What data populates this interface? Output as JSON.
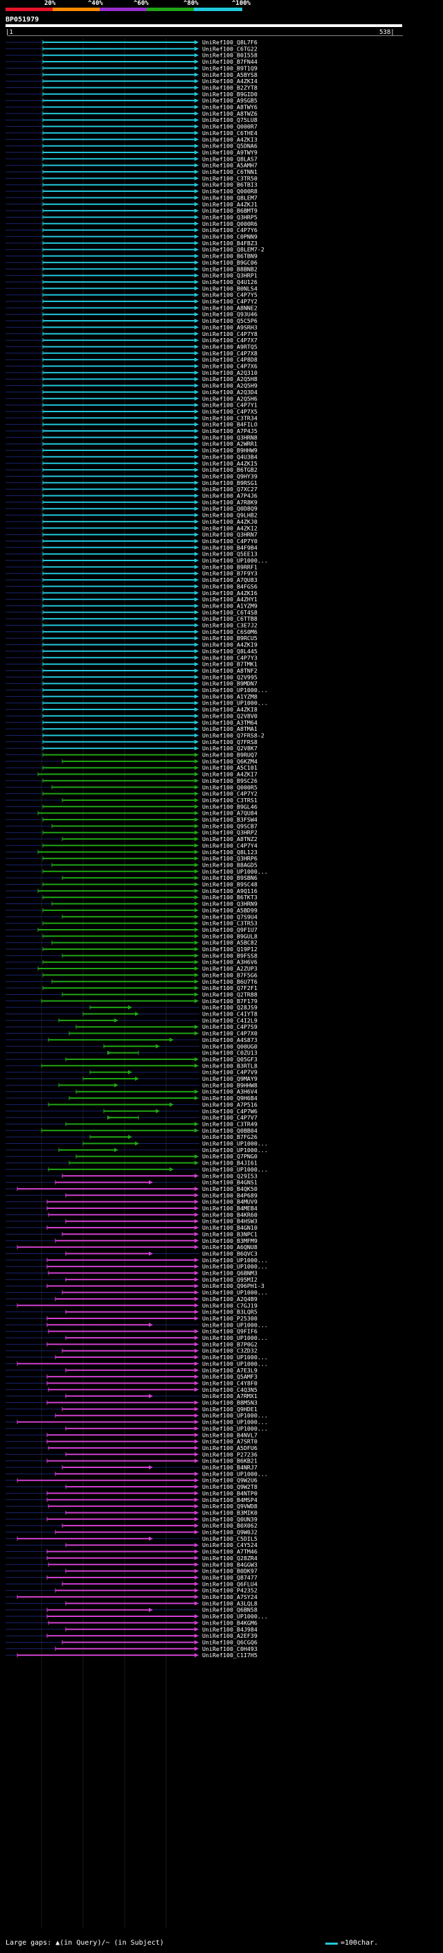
{
  "legend": {
    "labels": [
      "20%",
      "^40%",
      "^60%",
      "^80%",
      "^100%"
    ],
    "colors": [
      "#e8142b",
      "#ff8a00",
      "#9a2fd0",
      "#1fa616",
      "#22c8dc"
    ]
  },
  "query": {
    "title": "BP051979",
    "start_label": "|1",
    "end_label": "538|"
  },
  "identity_colors": {
    "cyan": "#22c8dc",
    "green": "#1fa616",
    "magenta": "#d040d0",
    "gap": "#3040c8"
  },
  "hits": [
    "UniRef100_Q8L7F6",
    "UniRef100_C6TG22",
    "UniRef100_B0I558",
    "UniRef100_B7FN44",
    "UniRef100_B9T1Q9",
    "UniRef100_A5BYS8",
    "UniRef100_A4ZKI4",
    "UniRef100_B2ZYT8",
    "UniRef100_B9GID0",
    "UniRef100_A9SGB5",
    "UniRef100_A8TWY6",
    "UniRef100_A8TWZ6",
    "UniRef100_Q75LU8",
    "UniRef100_Q000R7",
    "UniRef100_C6THE4",
    "UniRef100_A4ZKI3",
    "UniRef100_Q5DNA6",
    "UniRef100_A9TWY9",
    "UniRef100_Q8LAS7",
    "UniRef100_A5AMH7",
    "UniRef100_C6TNN1",
    "UniRef100_C3TR50",
    "UniRef100_B6TBI3",
    "UniRef100_Q000R8",
    "UniRef100_Q8LEM7",
    "UniRef100_A4ZKJ1",
    "UniRef100_B6BMT9",
    "UniRef100_Q3HRP5",
    "UniRef100_Q000R6",
    "UniRef100_C4P7Y6",
    "UniRef100_C0PNN9",
    "UniRef100_B4FBZ3",
    "UniRef100_Q8LEM7-2",
    "UniRef100_B6TBN9",
    "UniRef100_B9GC06",
    "UniRef100_B8BNB2",
    "UniRef100_Q3HRP1",
    "UniRef100_Q4U126",
    "UniRef100_B0NLS4",
    "UniRef100_C4P7Y5",
    "UniRef100_C4P7Y2",
    "UniRef100_A8NNE2",
    "UniRef100_Q93U46",
    "UniRef100_Q5C5P6",
    "UniRef100_A9SRH3",
    "UniRef100_C4P7Y8",
    "UniRef100_C4P7X7",
    "UniRef100_A9RTQ5",
    "UniRef100_C4P7X8",
    "UniRef100_C4P8D8",
    "UniRef100_C4P7X6",
    "UniRef100_A2Q310",
    "UniRef100_A2Q5H8",
    "UniRef100_A2Q5H9",
    "UniRef100_A2Q3D4",
    "UniRef100_A2Q5H6",
    "UniRef100_C4P7Y1",
    "UniRef100_C4P7X5",
    "UniRef100_C3TR34",
    "UniRef100_B4FILO",
    "UniRef100_A7P4J5",
    "UniRef100_Q3HRN8",
    "UniRef100_A2WRR1",
    "UniRef100_B9HHW9",
    "UniRef100_Q4U3B4",
    "UniRef100_A4ZKI5",
    "UniRef100_B6TGB2",
    "UniRef100_Q9HY39",
    "UniRef100_B9RSG1",
    "UniRef100_Q7XC27",
    "UniRef100_A7P4J6",
    "UniRef100_A7R8K9",
    "UniRef100_Q0D8Q9",
    "UniRef100_Q9LHB2",
    "UniRef100_A4ZKJ0",
    "UniRef100_A4ZKI2",
    "UniRef100_Q3HRN7",
    "UniRef100_C4P7Y0",
    "UniRef100_B4F9B4",
    "UniRef100_Q5EE13",
    "UniRef100_UP1000...",
    "UniRef100_B9RRF1",
    "UniRef100_B7F9Y3",
    "UniRef100_A7QU83",
    "UniRef100_B4FGS6",
    "UniRef100_A4ZKI6",
    "UniRef100_A4ZHY1",
    "UniRef100_A1YZM9",
    "UniRef100_C6T4S8",
    "UniRef100_C6TTB8",
    "UniRef100_C3E7J2",
    "UniRef100_C6S0M6",
    "UniRef100_B9RCU5",
    "UniRef100_A4ZKI9",
    "UniRef100_Q8L445",
    "UniRef100_C4P7Y3",
    "UniRef100_B7TMK1",
    "UniRef100_A8TNF2",
    "UniRef100_Q2V995",
    "UniRef100_B9MDN7",
    "UniRef100_UP1000...",
    "UniRef100_A1YZM8",
    "UniRef100_UP1000...",
    "UniRef100_A4ZKI8",
    "UniRef100_Q2V8V0",
    "UniRef100_A3TM64",
    "UniRef100_A8TMA1",
    "UniRef100_Q7FRS8-2",
    "UniRef100_Q7FRS8",
    "UniRef100_Q2V8K7",
    "UniRef100_B9RUQ7",
    "UniRef100_Q6KZM4",
    "UniRef100_A5C101",
    "UniRef100_A4ZKI7",
    "UniRef100_B9SC26",
    "UniRef100_Q000R5",
    "UniRef100_C4P7Y2",
    "UniRef100_C3TRS1",
    "UniRef100_B9GL46",
    "UniRef100_A7QU84",
    "UniRef100_B3FSW4",
    "UniRef100_Q9SCB7",
    "UniRef100_Q3HRP2",
    "UniRef100_A8TNZ2",
    "UniRef100_C4P7Y4",
    "UniRef100_Q8L123",
    "UniRef100_Q3HRP6",
    "UniRef100_B8AGD5",
    "UniRef100_UP1000...",
    "UniRef100_B9SBN6",
    "UniRef100_B9SC48",
    "UniRef100_A9Q116",
    "UniRef100_B6TKT3",
    "UniRef100_Q3HRN9",
    "UniRef100_A5BD99",
    "UniRef100_Q7S9U4",
    "UniRef100_C3TR53",
    "UniRef100_Q9F1U7",
    "UniRef100_B9GUL8",
    "UniRef100_A5BC82",
    "UniRef100_Q19P12",
    "UniRef100_B9FSS8",
    "UniRef100_A3H6V6",
    "UniRef100_A2ZUP3",
    "UniRef100_B7F5G6",
    "UniRef100_B6U7T6",
    "UniRef100_Q7F2F1",
    "UniRef100_Q2TR88",
    "UniRef100_B7F179",
    "UniRef100_Q28JS9",
    "UniRef100_C4IYT8",
    "UniRef100_C4I2L9",
    "UniRef100_C4P7S9",
    "UniRef100_C4P7X0",
    "UniRef100_A4S873",
    "UniRef100_Q00UG0",
    "UniRef100_C0ZU13",
    "UniRef100_Q05GF3",
    "UniRef100_B3RTL8",
    "UniRef100_C4P7V9",
    "UniRef100_Q9MAY9",
    "UniRef100_B9HHW8",
    "UniRef100_A3H6V4",
    "UniRef100_Q9H6B4",
    "UniRef100_A7P516",
    "UniRef100_C4P7W6",
    "UniRef100_C4P7V7",
    "UniRef100_C3TR49",
    "UniRef100_Q0BB04",
    "UniRef100_B7FG26",
    "UniRef100_UP1000...",
    "UniRef100_UP1000...",
    "UniRef100_Q7PNG0",
    "UniRef100_B4JI61",
    "UniRef100_UP1000...",
    "UniRef100_Q29I53",
    "UniRef100_B4GNS1",
    "UniRef100_B4QK50",
    "UniRef100_B4P689",
    "UniRef100_B4MUV9",
    "UniRef100_B4MEB4",
    "UniRef100_B4KR60",
    "UniRef100_B4HSW3",
    "UniRef100_B4GN10",
    "UniRef100_B3NPC1",
    "UniRef100_B3MFM9",
    "UniRef100_A6QNU8",
    "UniRef100_B6QVC3",
    "UniRef100_UP1000...",
    "UniRef100_UP1000...",
    "UniRef100_Q6BNM3",
    "UniRef100_Q95MI2",
    "UniRef100_Q96PH1-3",
    "UniRef100_UP1000...",
    "UniRef100_A2Q4B9",
    "UniRef100_C7GJ19",
    "UniRef100_B3LQR5",
    "UniRef100_P25300",
    "UniRef100_UP1000...",
    "UniRef100_Q9FIF6",
    "UniRef100_UP1000...",
    "UniRef100_B7P0G2",
    "UniRef100_C3ZD32",
    "UniRef100_UP1000...",
    "UniRef100_UP1000...",
    "UniRef100_A7E3L9",
    "UniRef100_Q5AMF3",
    "UniRef100_C4Y8F0",
    "UniRef100_C4Q3N5",
    "UniRef100_A7RMX1",
    "UniRef100_B8M5N3",
    "UniRef100_Q9HDE1",
    "UniRef100_UP1000...",
    "UniRef100_UP1000...",
    "UniRef100_UP1000...",
    "UniRef100_B4NVL7",
    "UniRef100_A7SRT0",
    "UniRef100_A5DFU6",
    "UniRef100_P27236",
    "UniRef100_B6KB21",
    "UniRef100_B4NRJ7",
    "UniRef100_UP1000...",
    "UniRef100_Q9W2U6",
    "UniRef100_Q9W2T8",
    "UniRef100_B4NTP0",
    "UniRef100_B4MSP4",
    "UniRef100_Q9VWD8",
    "UniRef100_B3MIK0",
    "UniRef100_Q0UN39",
    "UniRef100_B0X062",
    "UniRef100_Q9W0J2",
    "UniRef100_C5DIL5",
    "UniRef100_C4Y524",
    "UniRef100_A7TM46",
    "UniRef100_Q28ZR4",
    "UniRef100_B4GGW3",
    "UniRef100_B0DK97",
    "UniRef100_Q87477",
    "UniRef100_Q6FLU4",
    "UniRef100_P42352",
    "UniRef100_A7SY24",
    "UniRef100_A3LQL8",
    "UniRef100_Q6BN58",
    "UniRef100_UP1000...",
    "UniRef100_B4KGM6",
    "UniRef100_B4J984",
    "UniRef100_A2EF39",
    "UniRef100_Q6CGQ6",
    "UniRef100_C0H493",
    "UniRef100_C1I7H5"
  ],
  "footer": {
    "large_gaps": "Large gaps: ▲(in Query)/~ (in Subject)",
    "scale": "=100char."
  }
}
